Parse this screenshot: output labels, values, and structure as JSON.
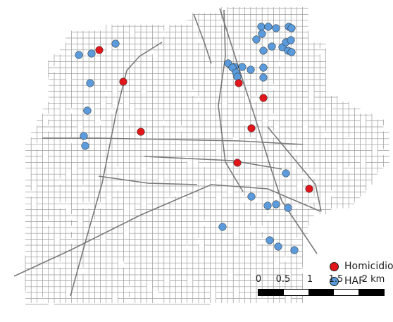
{
  "legend": {
    "homicidio": {
      "label": "Homicidio",
      "color": "#e0161b"
    },
    "haf": {
      "label": "HAF",
      "color": "#5b9bdc"
    }
  },
  "scale_bar": {
    "ticks": [
      "0",
      "0.5",
      "1",
      "1.5",
      "2 km"
    ]
  },
  "colors": {
    "street": "#9a9a9a",
    "major_road": "#7a7a7a",
    "marker_stroke": "#1a1a1a"
  }
}
